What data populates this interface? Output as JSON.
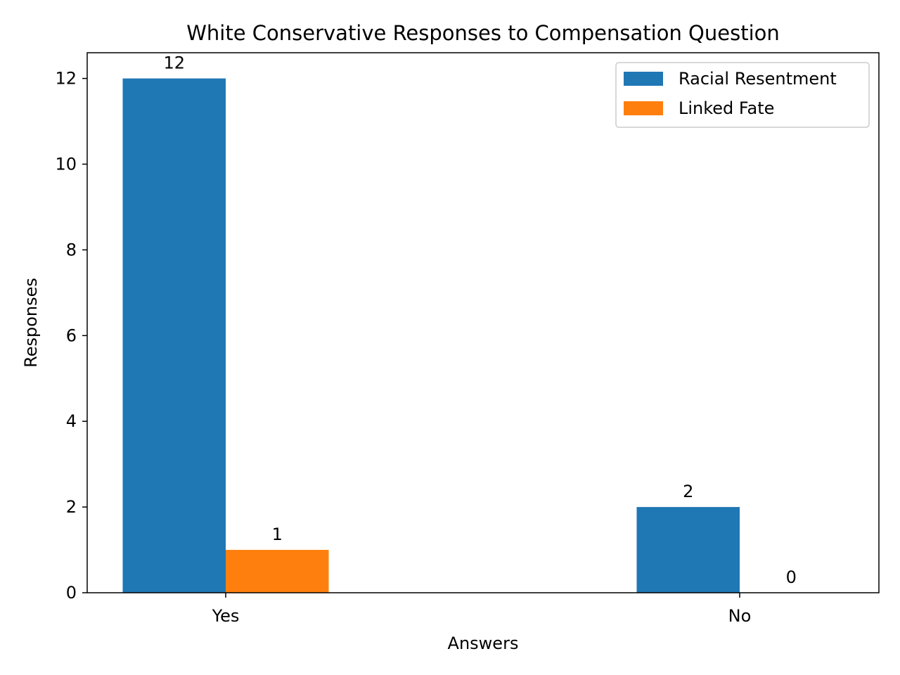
{
  "chart_data": {
    "type": "bar",
    "title": "White Conservative Responses to Compensation Question",
    "xlabel": "Answers",
    "ylabel": "Responses",
    "categories": [
      "Yes",
      "No"
    ],
    "series": [
      {
        "name": "Racial Resentment",
        "values": [
          12,
          2
        ],
        "color": "#1f77b4"
      },
      {
        "name": "Linked Fate",
        "values": [
          1,
          0
        ],
        "color": "#ff7f0e"
      }
    ],
    "ylim": [
      0,
      12.6
    ],
    "yticks": [
      0,
      2,
      4,
      6,
      8,
      10,
      12
    ],
    "grid": false,
    "legend_position": "top-right"
  }
}
